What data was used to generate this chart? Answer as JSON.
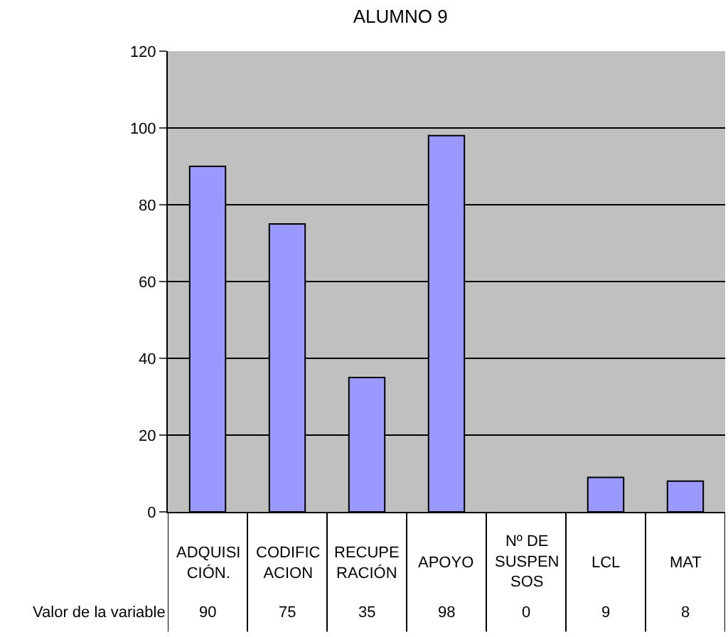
{
  "chart_data": {
    "type": "bar",
    "title": "ALUMNO 9",
    "categories": [
      "ADQUISI\nCIÓN.",
      "CODIFIC\nACION",
      "RECUPE\nRACIÓN",
      "APOYO",
      "Nº DE\nSUSPEN\nSOS",
      "LCL",
      "MAT"
    ],
    "series": [
      {
        "name": "Valor de la variable",
        "color": "#9999ff",
        "values": [
          90,
          75,
          35,
          98,
          0,
          9,
          8
        ]
      }
    ],
    "ylim": [
      0,
      120
    ],
    "yticks": [
      0,
      20,
      40,
      60,
      80,
      100,
      120
    ],
    "grid": "y",
    "legend": false,
    "data_labels": true
  }
}
